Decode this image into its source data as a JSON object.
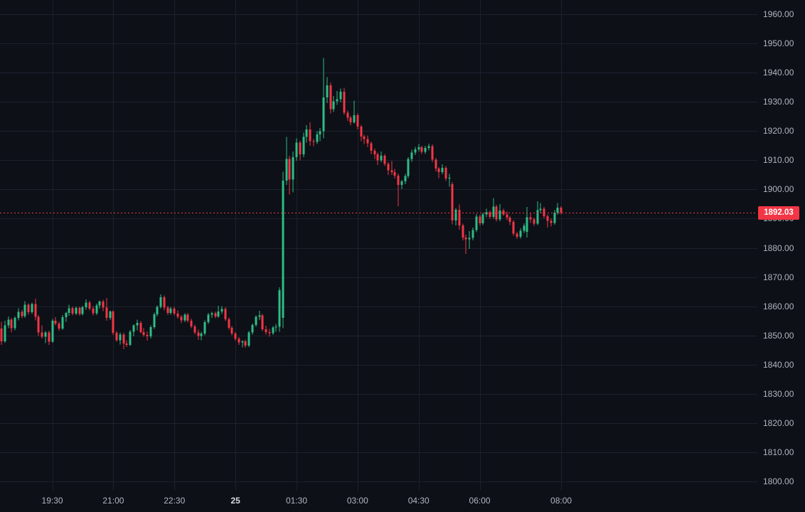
{
  "colors": {
    "background": "#0d1017",
    "grid": "#1c212e",
    "up": "#2ebd85",
    "down": "#f23645",
    "axis_text": "#b2b5be",
    "day_label_text": "#d8dbe2",
    "price_line": "#f23645",
    "badge_bg": "#f23645",
    "badge_text": "#ffffff"
  },
  "chart_data": {
    "type": "candlestick",
    "interval_minutes": 5,
    "last_price": 1892.03,
    "last_price_label": "1892.03",
    "price_line_style": "dotted",
    "y_axis": {
      "min": 1800,
      "max": 1960,
      "step": 10,
      "tick_values": [
        1960,
        1950,
        1940,
        1930,
        1920,
        1910,
        1900,
        1890,
        1880,
        1870,
        1860,
        1850,
        1840,
        1830,
        1820,
        1810,
        1800
      ],
      "tick_labels": [
        "1960.00",
        "1950.00",
        "1940.00",
        "1930.00",
        "1920.00",
        "1910.00",
        "1900.00",
        "1890.00",
        "1880.00",
        "1870.00",
        "1860.00",
        "1850.00",
        "1840.00",
        "1830.00",
        "1820.00",
        "1810.00",
        "1800.00"
      ]
    },
    "x_axis": {
      "labels": [
        "19:30",
        "21:00",
        "22:30",
        "25",
        "01:30",
        "03:00",
        "04:30",
        "06:00",
        "08:00"
      ],
      "candle_indices": [
        15,
        33,
        51,
        69,
        87,
        105,
        123,
        141,
        165
      ],
      "day_separator_label": "25"
    },
    "candle_format": [
      "time",
      "open",
      "high",
      "low",
      "close"
    ],
    "candles": [
      [
        "18:15",
        1852.3,
        1854.7,
        1846.7,
        1848.0
      ],
      [
        "18:20",
        1848.0,
        1855.0,
        1847.5,
        1853.4
      ],
      [
        "18:25",
        1853.4,
        1856.5,
        1852.5,
        1855.4
      ],
      [
        "18:30",
        1855.4,
        1856.0,
        1851.0,
        1852.5
      ],
      [
        "18:35",
        1852.5,
        1856.5,
        1851.8,
        1856.0
      ],
      [
        "18:40",
        1856.0,
        1859.3,
        1855.2,
        1858.1
      ],
      [
        "18:45",
        1858.1,
        1858.8,
        1855.9,
        1856.6
      ],
      [
        "18:50",
        1856.6,
        1861.7,
        1856.0,
        1860.5
      ],
      [
        "18:55",
        1860.5,
        1861.0,
        1857.1,
        1858.0
      ],
      [
        "19:00",
        1858.0,
        1861.2,
        1857.4,
        1860.8
      ],
      [
        "19:05",
        1860.8,
        1862.6,
        1855.2,
        1856.4
      ],
      [
        "19:10",
        1856.4,
        1857.0,
        1849.8,
        1851.0
      ],
      [
        "19:15",
        1851.0,
        1853.5,
        1848.9,
        1849.6
      ],
      [
        "19:20",
        1849.6,
        1851.5,
        1847.4,
        1851.0
      ],
      [
        "19:25",
        1851.0,
        1851.6,
        1846.7,
        1847.9
      ],
      [
        "19:30",
        1847.9,
        1855.6,
        1847.5,
        1855.0
      ],
      [
        "19:35",
        1855.0,
        1856.2,
        1853.5,
        1854.1
      ],
      [
        "19:40",
        1854.1,
        1854.7,
        1851.6,
        1852.4
      ],
      [
        "19:45",
        1852.4,
        1857.0,
        1851.9,
        1856.3
      ],
      [
        "19:50",
        1856.3,
        1858.1,
        1854.7,
        1857.7
      ],
      [
        "19:55",
        1857.7,
        1860.5,
        1856.8,
        1859.3
      ],
      [
        "20:00",
        1859.3,
        1859.9,
        1856.9,
        1857.5
      ],
      [
        "20:05",
        1857.5,
        1859.9,
        1857.0,
        1859.4
      ],
      [
        "20:10",
        1859.4,
        1859.9,
        1856.7,
        1857.3
      ],
      [
        "20:15",
        1857.3,
        1860.1,
        1856.9,
        1859.7
      ],
      [
        "20:20",
        1859.7,
        1862.4,
        1858.8,
        1861.2
      ],
      [
        "20:25",
        1861.2,
        1861.8,
        1858.6,
        1859.2
      ],
      [
        "20:30",
        1859.2,
        1860.0,
        1856.9,
        1857.6
      ],
      [
        "20:35",
        1857.6,
        1860.9,
        1857.0,
        1860.3
      ],
      [
        "20:40",
        1860.3,
        1862.0,
        1859.2,
        1861.6
      ],
      [
        "20:45",
        1861.6,
        1862.2,
        1858.3,
        1859.6
      ],
      [
        "20:50",
        1859.6,
        1862.8,
        1855.0,
        1856.0
      ],
      [
        "20:55",
        1856.0,
        1858.6,
        1855.3,
        1858.2
      ],
      [
        "21:00",
        1858.2,
        1858.6,
        1850.2,
        1850.9
      ],
      [
        "21:05",
        1850.9,
        1851.5,
        1847.9,
        1848.4
      ],
      [
        "21:10",
        1848.4,
        1851.0,
        1846.9,
        1850.3
      ],
      [
        "21:15",
        1850.3,
        1850.9,
        1845.3,
        1847.2
      ],
      [
        "21:20",
        1847.2,
        1848.4,
        1846.0,
        1846.8
      ],
      [
        "21:25",
        1846.8,
        1851.9,
        1846.4,
        1851.3
      ],
      [
        "21:30",
        1851.3,
        1853.8,
        1849.7,
        1853.4
      ],
      [
        "21:35",
        1853.4,
        1855.4,
        1851.8,
        1854.3
      ],
      [
        "21:40",
        1854.3,
        1854.9,
        1850.6,
        1851.1
      ],
      [
        "21:45",
        1851.1,
        1852.5,
        1849.6,
        1850.2
      ],
      [
        "21:50",
        1850.2,
        1851.4,
        1848.2,
        1849.7
      ],
      [
        "21:55",
        1849.7,
        1853.4,
        1848.9,
        1852.9
      ],
      [
        "22:00",
        1852.9,
        1857.8,
        1852.2,
        1857.2
      ],
      [
        "22:05",
        1857.2,
        1860.3,
        1856.5,
        1859.8
      ],
      [
        "22:10",
        1859.8,
        1864.1,
        1859.2,
        1863.1
      ],
      [
        "22:15",
        1863.1,
        1863.7,
        1858.6,
        1859.5
      ],
      [
        "22:20",
        1859.5,
        1860.1,
        1857.0,
        1857.7
      ],
      [
        "22:25",
        1857.7,
        1859.8,
        1857.1,
        1859.2
      ],
      [
        "22:30",
        1859.2,
        1859.8,
        1856.9,
        1857.5
      ],
      [
        "22:35",
        1857.5,
        1858.6,
        1855.8,
        1856.4
      ],
      [
        "22:40",
        1856.4,
        1857.0,
        1854.2,
        1855.1
      ],
      [
        "22:45",
        1855.1,
        1857.6,
        1854.6,
        1857.1
      ],
      [
        "22:50",
        1857.1,
        1857.7,
        1854.4,
        1855.0
      ],
      [
        "22:55",
        1855.0,
        1855.8,
        1852.5,
        1853.1
      ],
      [
        "23:00",
        1853.1,
        1853.7,
        1850.4,
        1851.0
      ],
      [
        "23:05",
        1851.0,
        1852.0,
        1848.5,
        1849.8
      ],
      [
        "23:10",
        1849.8,
        1851.3,
        1848.3,
        1850.7
      ],
      [
        "23:15",
        1850.7,
        1855.2,
        1850.1,
        1854.6
      ],
      [
        "23:20",
        1854.6,
        1857.7,
        1853.9,
        1857.1
      ],
      [
        "23:25",
        1857.1,
        1858.1,
        1856.0,
        1857.6
      ],
      [
        "23:30",
        1857.6,
        1858.2,
        1855.9,
        1856.5
      ],
      [
        "23:35",
        1856.5,
        1860.2,
        1856.0,
        1858.2
      ],
      [
        "23:40",
        1858.2,
        1860.0,
        1857.4,
        1859.1
      ],
      [
        "23:45",
        1859.1,
        1859.7,
        1854.9,
        1855.5
      ],
      [
        "23:50",
        1855.5,
        1856.1,
        1852.0,
        1852.6
      ],
      [
        "23:55",
        1852.6,
        1853.2,
        1850.0,
        1850.6
      ],
      [
        "00:00",
        1850.6,
        1851.2,
        1848.2,
        1848.8
      ],
      [
        "00:05",
        1848.8,
        1849.4,
        1846.7,
        1847.6
      ],
      [
        "00:10",
        1847.6,
        1848.3,
        1845.9,
        1848.0
      ],
      [
        "00:15",
        1848.0,
        1848.6,
        1845.8,
        1846.5
      ],
      [
        "00:20",
        1846.5,
        1851.5,
        1846.0,
        1851.0
      ],
      [
        "00:25",
        1851.0,
        1854.1,
        1850.3,
        1853.6
      ],
      [
        "00:30",
        1853.6,
        1856.9,
        1853.0,
        1856.4
      ],
      [
        "00:35",
        1856.4,
        1858.4,
        1855.3,
        1856.9
      ],
      [
        "00:40",
        1856.9,
        1857.4,
        1851.5,
        1852.1
      ],
      [
        "00:45",
        1852.1,
        1853.3,
        1850.3,
        1851.1
      ],
      [
        "00:50",
        1851.1,
        1852.2,
        1849.6,
        1850.8
      ],
      [
        "00:55",
        1850.8,
        1853.2,
        1850.2,
        1852.7
      ],
      [
        "01:00",
        1852.7,
        1854.0,
        1851.3,
        1853.0
      ],
      [
        "01:05",
        1853.0,
        1866.5,
        1851.3,
        1865.5
      ],
      [
        "01:10",
        1856.0,
        1906.0,
        1852.5,
        1903.0
      ],
      [
        "01:15",
        1903.0,
        1918.0,
        1901.5,
        1910.5
      ],
      [
        "01:20",
        1910.5,
        1911.5,
        1898.3,
        1903.4
      ],
      [
        "01:25",
        1903.4,
        1913.0,
        1899.0,
        1911.0
      ],
      [
        "01:30",
        1911.0,
        1917.5,
        1909.8,
        1916.0
      ],
      [
        "01:35",
        1916.0,
        1916.6,
        1910.0,
        1912.0
      ],
      [
        "01:40",
        1912.0,
        1919.5,
        1911.0,
        1918.0
      ],
      [
        "01:45",
        1918.0,
        1922.0,
        1916.0,
        1920.5
      ],
      [
        "01:50",
        1920.5,
        1923.0,
        1915.0,
        1916.5
      ],
      [
        "01:55",
        1916.5,
        1917.3,
        1914.8,
        1916.3
      ],
      [
        "02:00",
        1916.3,
        1920.0,
        1915.5,
        1918.9
      ],
      [
        "02:05",
        1918.9,
        1921.0,
        1916.5,
        1919.9
      ],
      [
        "02:10",
        1919.9,
        1945.0,
        1917.5,
        1931.5
      ],
      [
        "02:15",
        1931.5,
        1938.5,
        1929.5,
        1935.6
      ],
      [
        "02:20",
        1935.6,
        1936.6,
        1926.0,
        1927.5
      ],
      [
        "02:25",
        1927.5,
        1932.0,
        1926.5,
        1930.2
      ],
      [
        "02:30",
        1930.2,
        1933.7,
        1929.0,
        1930.9
      ],
      [
        "02:35",
        1930.9,
        1934.5,
        1929.8,
        1933.5
      ],
      [
        "02:40",
        1933.5,
        1934.8,
        1925.5,
        1926.3
      ],
      [
        "02:45",
        1926.3,
        1927.0,
        1923.5,
        1924.6
      ],
      [
        "02:50",
        1924.6,
        1925.2,
        1922.0,
        1923.0
      ],
      [
        "02:55",
        1923.0,
        1930.4,
        1922.5,
        1925.4
      ],
      [
        "03:00",
        1925.4,
        1926.0,
        1920.5,
        1921.5
      ],
      [
        "03:05",
        1921.5,
        1922.1,
        1916.5,
        1918.1
      ],
      [
        "03:10",
        1918.1,
        1918.7,
        1915.5,
        1917.2
      ],
      [
        "03:15",
        1917.2,
        1918.5,
        1914.5,
        1915.8
      ],
      [
        "03:20",
        1915.8,
        1916.4,
        1912.0,
        1913.2
      ],
      [
        "03:25",
        1913.2,
        1914.0,
        1910.5,
        1912.0
      ],
      [
        "03:30",
        1912.0,
        1912.6,
        1908.4,
        1910.0
      ],
      [
        "03:35",
        1910.0,
        1913.0,
        1909.4,
        1911.5
      ],
      [
        "03:40",
        1911.5,
        1912.1,
        1908.0,
        1908.7
      ],
      [
        "03:45",
        1908.7,
        1909.3,
        1905.0,
        1906.5
      ],
      [
        "03:50",
        1906.5,
        1909.7,
        1905.0,
        1905.9
      ],
      [
        "03:55",
        1905.9,
        1907.0,
        1903.8,
        1904.7
      ],
      [
        "04:00",
        1904.7,
        1905.5,
        1894.3,
        1901.5
      ],
      [
        "04:05",
        1901.5,
        1903.3,
        1900.1,
        1902.8
      ],
      [
        "04:10",
        1902.8,
        1905.3,
        1901.8,
        1904.6
      ],
      [
        "04:15",
        1904.6,
        1911.0,
        1903.9,
        1910.4
      ],
      [
        "04:20",
        1910.4,
        1913.6,
        1909.5,
        1912.6
      ],
      [
        "04:25",
        1912.6,
        1914.6,
        1911.8,
        1913.7
      ],
      [
        "04:30",
        1913.7,
        1915.6,
        1913.0,
        1914.4
      ],
      [
        "04:35",
        1914.4,
        1915.0,
        1912.1,
        1912.9
      ],
      [
        "04:40",
        1912.9,
        1915.0,
        1912.2,
        1914.2
      ],
      [
        "04:45",
        1914.2,
        1915.7,
        1913.4,
        1914.8
      ],
      [
        "04:50",
        1914.8,
        1915.4,
        1909.3,
        1910.2
      ],
      [
        "04:55",
        1910.2,
        1910.8,
        1906.2,
        1907.1
      ],
      [
        "05:00",
        1907.1,
        1907.7,
        1903.9,
        1905.9
      ],
      [
        "05:05",
        1905.9,
        1908.6,
        1905.2,
        1907.4
      ],
      [
        "05:10",
        1907.4,
        1908.0,
        1902.9,
        1903.7
      ],
      [
        "05:15",
        1903.7,
        1905.3,
        1900.9,
        1904.0
      ],
      [
        "05:20",
        1901.8,
        1902.5,
        1888.0,
        1889.4
      ],
      [
        "05:25",
        1889.4,
        1893.6,
        1887.7,
        1893.0
      ],
      [
        "05:30",
        1893.0,
        1894.8,
        1886.2,
        1887.7
      ],
      [
        "05:35",
        1887.7,
        1888.3,
        1882.5,
        1883.5
      ],
      [
        "05:40",
        1883.5,
        1884.5,
        1877.9,
        1882.9
      ],
      [
        "05:45",
        1882.9,
        1885.7,
        1879.6,
        1883.4
      ],
      [
        "05:50",
        1883.4,
        1887.0,
        1882.6,
        1886.1
      ],
      [
        "05:55",
        1886.1,
        1891.6,
        1885.4,
        1890.7
      ],
      [
        "06:00",
        1890.7,
        1891.3,
        1887.5,
        1888.4
      ],
      [
        "06:05",
        1888.4,
        1892.0,
        1887.8,
        1891.5
      ],
      [
        "06:10",
        1891.5,
        1893.4,
        1890.5,
        1892.2
      ],
      [
        "06:15",
        1892.2,
        1892.8,
        1890.0,
        1890.6
      ],
      [
        "06:20",
        1890.6,
        1897.1,
        1890.0,
        1894.1
      ],
      [
        "06:25",
        1894.1,
        1894.7,
        1889.0,
        1889.7
      ],
      [
        "06:30",
        1889.7,
        1895.0,
        1889.1,
        1892.8
      ],
      [
        "06:35",
        1892.8,
        1893.4,
        1890.9,
        1891.5
      ],
      [
        "06:40",
        1891.5,
        1892.4,
        1889.5,
        1890.4
      ],
      [
        "06:45",
        1890.4,
        1891.0,
        1887.8,
        1888.9
      ],
      [
        "06:50",
        1888.9,
        1889.5,
        1884.2,
        1884.9
      ],
      [
        "06:55",
        1884.9,
        1885.5,
        1883.0,
        1883.8
      ],
      [
        "07:00",
        1883.8,
        1886.7,
        1883.2,
        1885.9
      ],
      [
        "07:05",
        1885.9,
        1888.4,
        1885.1,
        1887.6
      ],
      [
        "07:10",
        1885.5,
        1894.0,
        1883.5,
        1890.5
      ],
      [
        "07:15",
        1890.5,
        1891.9,
        1888.5,
        1889.8
      ],
      [
        "07:20",
        1889.8,
        1890.4,
        1887.6,
        1888.3
      ],
      [
        "07:25",
        1888.3,
        1895.9,
        1887.8,
        1892.9
      ],
      [
        "07:30",
        1892.9,
        1895.4,
        1891.9,
        1893.4
      ],
      [
        "07:35",
        1893.4,
        1894.0,
        1890.1,
        1890.8
      ],
      [
        "07:40",
        1890.8,
        1891.4,
        1886.9,
        1889.2
      ],
      [
        "07:45",
        1889.2,
        1890.1,
        1887.3,
        1888.5
      ],
      [
        "07:50",
        1888.5,
        1892.9,
        1887.9,
        1892.1
      ],
      [
        "07:55",
        1892.1,
        1895.3,
        1891.3,
        1893.7
      ],
      [
        "08:00",
        1893.7,
        1894.2,
        1891.5,
        1892.03
      ]
    ]
  }
}
